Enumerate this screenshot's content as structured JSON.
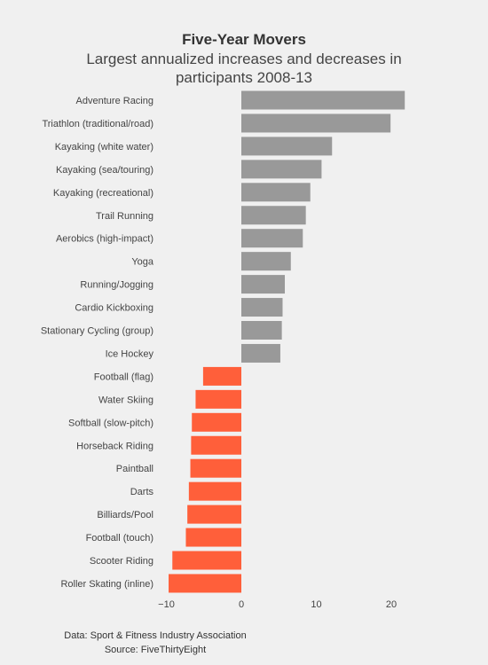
{
  "chart_data": {
    "type": "bar",
    "orientation": "horizontal",
    "title": "Five-Year Movers",
    "subtitle": "Largest annualized increases and decreases in participants 2008-13",
    "categories": [
      "Adventure Racing",
      "Triathlon (traditional/road)",
      "Kayaking (white water)",
      "Kayaking (sea/touring)",
      "Kayaking (recreational)",
      "Trail Running",
      "Aerobics (high-impact)",
      "Yoga",
      "Running/Jogging",
      "Cardio Kickboxing",
      "Stationary Cycling (group)",
      "Ice Hockey",
      "Football (flag)",
      "Water Skiing",
      "Softball (slow-pitch)",
      "Horseback Riding",
      "Paintball",
      "Darts",
      "Billiards/Pool",
      "Football (touch)",
      "Scooter Riding",
      "Roller Skating (inline)"
    ],
    "values": [
      21.8,
      19.9,
      12.1,
      10.7,
      9.2,
      8.6,
      8.2,
      6.6,
      5.8,
      5.5,
      5.4,
      5.2,
      -5.1,
      -6.1,
      -6.6,
      -6.7,
      -6.8,
      -7.0,
      -7.2,
      -7.4,
      -9.2,
      -9.7
    ],
    "xlim": [
      -12,
      25
    ],
    "xticks": [
      -10,
      0,
      10,
      20
    ],
    "xtick_labels": [
      "−10",
      "0",
      "10",
      "20"
    ],
    "colors": {
      "positive": "#999999",
      "negative": "#ff5f3a"
    },
    "grid": false
  },
  "source": {
    "line1": "Data: Sport & Fitness Industry Association",
    "line2": "Source: FiveThirtyEight"
  }
}
